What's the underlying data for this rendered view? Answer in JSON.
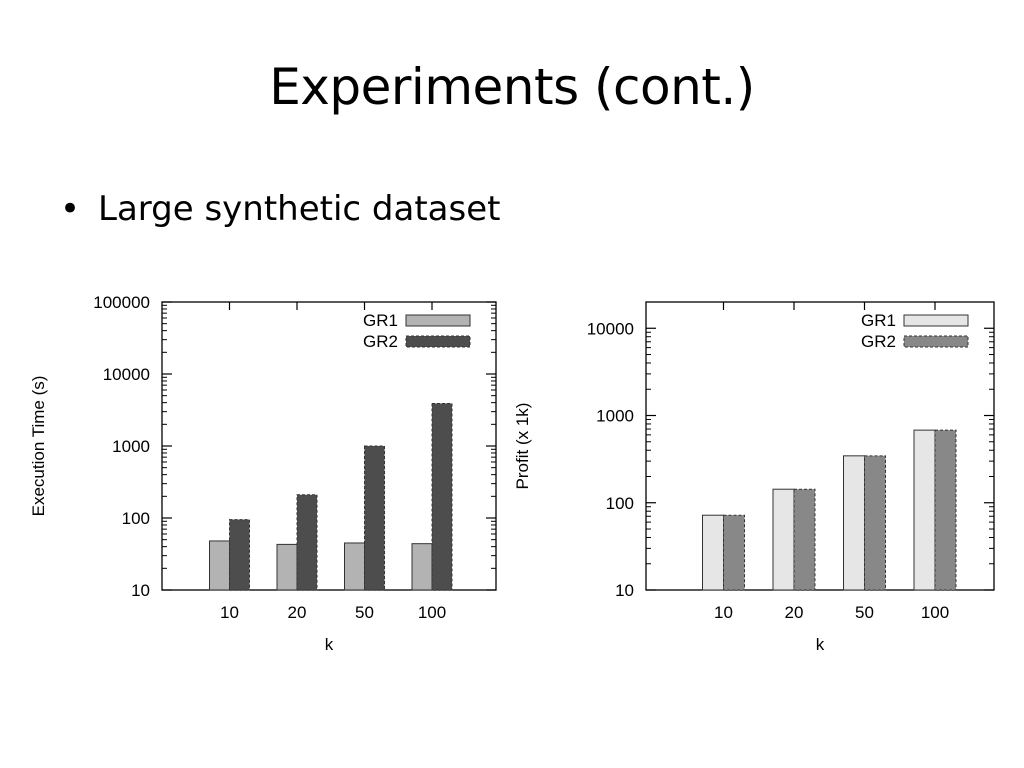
{
  "slide": {
    "title": "Experiments (cont.)",
    "bullet_symbol": "•",
    "bullet_text": "Large synthetic dataset"
  },
  "chart_data": [
    {
      "type": "bar",
      "title": "",
      "xlabel": "k",
      "ylabel": "Execution Time (s)",
      "yscale": "log",
      "ylim": [
        10,
        100000
      ],
      "yticks": [
        "10",
        "100",
        "1000",
        "10000",
        "100000"
      ],
      "categories": [
        "10",
        "20",
        "50",
        "100"
      ],
      "legend_position": "top-right",
      "grid": false,
      "series": [
        {
          "name": "GR1",
          "values": [
            48,
            43,
            45,
            44
          ],
          "color": "#b3b3b3"
        },
        {
          "name": "GR2",
          "values": [
            95,
            210,
            1000,
            3900
          ],
          "color": "#4d4d4d"
        }
      ]
    },
    {
      "type": "bar",
      "title": "",
      "xlabel": "k",
      "ylabel": "Profit (x 1k)",
      "yscale": "log",
      "ylim": [
        10,
        20000
      ],
      "yticks": [
        "10",
        "100",
        "1000",
        "10000"
      ],
      "categories": [
        "10",
        "20",
        "50",
        "100"
      ],
      "legend_position": "top-right",
      "grid": false,
      "series": [
        {
          "name": "GR1",
          "values": [
            72,
            143,
            345,
            680
          ],
          "color": "#e6e6e6"
        },
        {
          "name": "GR2",
          "values": [
            72,
            143,
            345,
            680
          ],
          "color": "#888888"
        }
      ]
    }
  ]
}
